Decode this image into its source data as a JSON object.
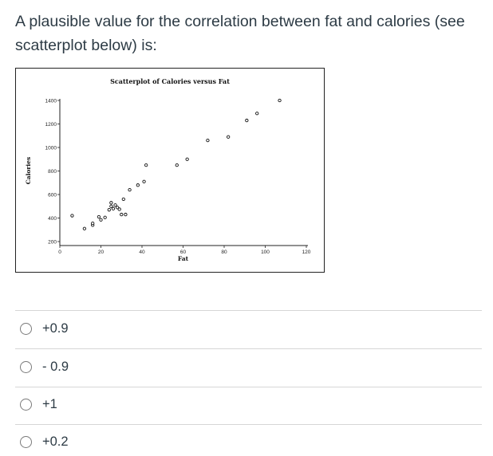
{
  "question": {
    "text": "A plausible value for the correlation between fat and calories (see scatterplot below) is:"
  },
  "chart_data": {
    "type": "scatter",
    "title": "Scatterplot of Calories versus Fat",
    "xlabel": "Fat",
    "ylabel": "Calories",
    "xlim": [
      0,
      120
    ],
    "ylim": [
      200,
      1400
    ],
    "xticks": [
      0,
      20,
      40,
      60,
      80,
      100,
      120
    ],
    "yticks": [
      200,
      400,
      600,
      800,
      1000,
      1200,
      1400
    ],
    "points": [
      [
        6,
        420
      ],
      [
        12,
        310
      ],
      [
        16,
        340
      ],
      [
        16,
        355
      ],
      [
        19,
        410
      ],
      [
        20,
        385
      ],
      [
        22,
        405
      ],
      [
        24,
        470
      ],
      [
        25,
        500
      ],
      [
        25,
        530
      ],
      [
        26,
        480
      ],
      [
        27,
        510
      ],
      [
        28,
        490
      ],
      [
        29,
        475
      ],
      [
        30,
        430
      ],
      [
        31,
        560
      ],
      [
        32,
        430
      ],
      [
        34,
        640
      ],
      [
        38,
        680
      ],
      [
        41,
        710
      ],
      [
        42,
        850
      ],
      [
        57,
        850
      ],
      [
        62,
        900
      ],
      [
        72,
        1060
      ],
      [
        82,
        1090
      ],
      [
        91,
        1230
      ],
      [
        96,
        1290
      ],
      [
        107,
        1400
      ]
    ]
  },
  "answers": [
    {
      "label": "+0.9"
    },
    {
      "label": "- 0.9"
    },
    {
      "label": "+1"
    },
    {
      "label": "+0.2"
    }
  ]
}
